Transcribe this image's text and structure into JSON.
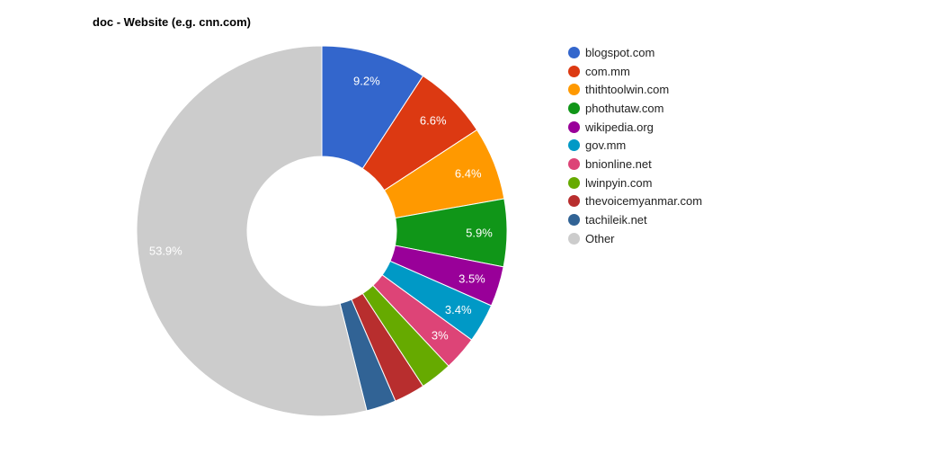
{
  "chart_data": {
    "type": "pie",
    "donut": true,
    "title": "doc - Website (e.g. cnn.com)",
    "legend_position": "right",
    "slices": [
      {
        "label": "blogspot.com",
        "value": 9.2,
        "display": "9.2%",
        "color": "#3366cc"
      },
      {
        "label": "com.mm",
        "value": 6.6,
        "display": "6.6%",
        "color": "#dc3912"
      },
      {
        "label": "thithtoolwin.com",
        "value": 6.4,
        "display": "6.4%",
        "color": "#ff9900"
      },
      {
        "label": "phothutaw.com",
        "value": 5.9,
        "display": "5.9%",
        "color": "#109618"
      },
      {
        "label": "wikipedia.org",
        "value": 3.5,
        "display": "3.5%",
        "color": "#990099"
      },
      {
        "label": "gov.mm",
        "value": 3.4,
        "display": "3.4%",
        "color": "#0099c6"
      },
      {
        "label": "bnionline.net",
        "value": 3.0,
        "display": "3%",
        "color": "#dd4477"
      },
      {
        "label": "lwinpyin.com",
        "value": 2.8,
        "display": "",
        "color": "#66aa00"
      },
      {
        "label": "thevoicemyanmar.com",
        "value": 2.7,
        "display": "",
        "color": "#b82e2e"
      },
      {
        "label": "tachileik.net",
        "value": 2.6,
        "display": "",
        "color": "#316395"
      },
      {
        "label": "Other",
        "value": 53.9,
        "display": "53.9%",
        "color": "#cccccc"
      }
    ]
  }
}
